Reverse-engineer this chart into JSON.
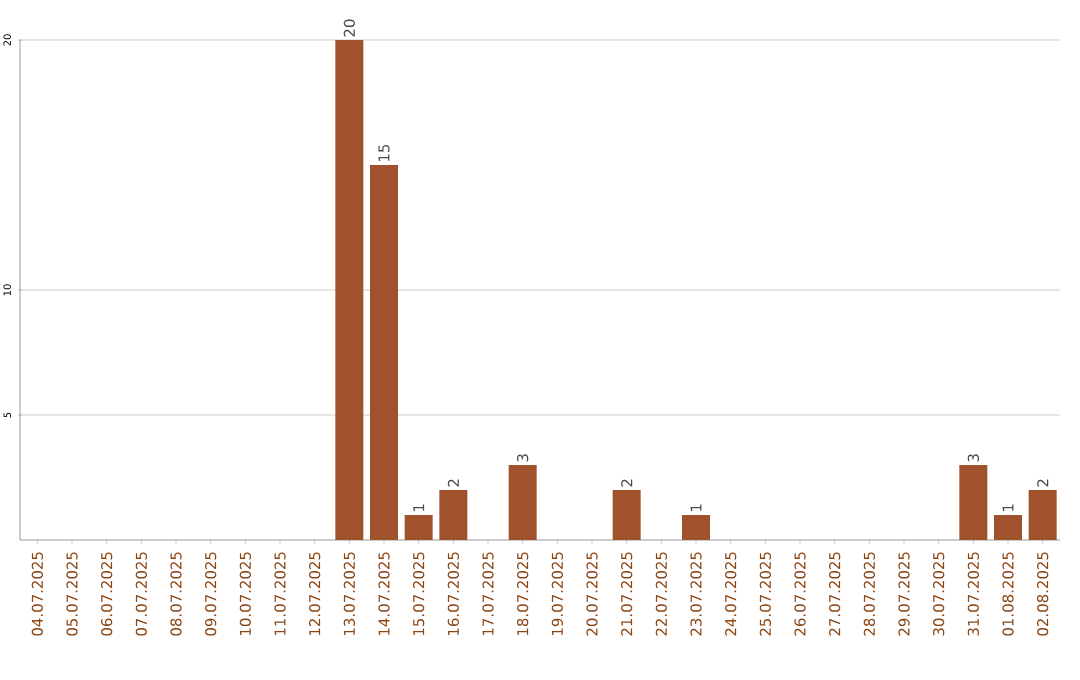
{
  "chart_data": {
    "type": "bar",
    "categories": [
      "04.07.2025",
      "05.07.2025",
      "06.07.2025",
      "07.07.2025",
      "08.07.2025",
      "09.07.2025",
      "10.07.2025",
      "11.07.2025",
      "12.07.2025",
      "13.07.2025",
      "14.07.2025",
      "15.07.2025",
      "16.07.2025",
      "17.07.2025",
      "18.07.2025",
      "19.07.2025",
      "20.07.2025",
      "21.07.2025",
      "22.07.2025",
      "23.07.2025",
      "24.07.2025",
      "25.07.2025",
      "26.07.2025",
      "27.07.2025",
      "28.07.2025",
      "29.07.2025",
      "30.07.2025",
      "31.07.2025",
      "01.08.2025",
      "02.08.2025"
    ],
    "values": [
      0,
      0,
      0,
      0,
      0,
      0,
      0,
      0,
      0,
      20,
      15,
      1,
      2,
      0,
      3,
      0,
      0,
      2,
      0,
      1,
      0,
      0,
      0,
      0,
      0,
      0,
      0,
      3,
      1,
      2
    ],
    "value_labels": [
      null,
      null,
      null,
      null,
      null,
      null,
      null,
      null,
      null,
      "20",
      "15",
      "1",
      "2",
      null,
      "3",
      null,
      null,
      "2",
      null,
      "1",
      null,
      null,
      null,
      null,
      null,
      null,
      null,
      "3",
      "1",
      "2"
    ],
    "color": "#a0522d",
    "ylim": [
      0,
      20
    ],
    "yticks": [
      5,
      10,
      20
    ],
    "grid": "y"
  }
}
